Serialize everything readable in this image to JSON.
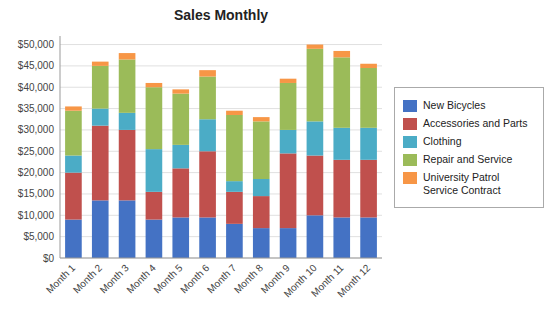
{
  "chart_data": {
    "type": "bar",
    "title": "Sales Monthly",
    "categories": [
      "Month 1",
      "Month 2",
      "Month 3",
      "Month 4",
      "Month 5",
      "Month 6",
      "Month 7",
      "Month 8",
      "Month 9",
      "Month 10",
      "Month 11",
      "Month 12"
    ],
    "series": [
      {
        "name": "New Bicycles",
        "color": "#4472C4",
        "values": [
          9000,
          13500,
          13500,
          9000,
          9500,
          9500,
          8000,
          7000,
          7000,
          10000,
          9500,
          9500
        ]
      },
      {
        "name": "Accessories and Parts",
        "color": "#C0504D",
        "values": [
          11000,
          17500,
          16500,
          6500,
          11500,
          15500,
          7500,
          7500,
          17500,
          14000,
          13500,
          13500
        ]
      },
      {
        "name": "Clothing",
        "color": "#4BACC6",
        "values": [
          4000,
          4000,
          4000,
          10000,
          5500,
          7500,
          2500,
          4000,
          5500,
          8000,
          7500,
          7500
        ]
      },
      {
        "name": "Repair and Service",
        "color": "#9BBB59",
        "values": [
          10500,
          10000,
          12500,
          14500,
          12000,
          10000,
          15500,
          13500,
          11000,
          17000,
          16500,
          14000
        ]
      },
      {
        "name": "University Patrol Service Contract",
        "color": "#F79646",
        "values": [
          1000,
          1000,
          1500,
          1000,
          1000,
          1500,
          1000,
          1000,
          1000,
          1000,
          1500,
          1000
        ]
      }
    ],
    "ylim": [
      0,
      52000
    ],
    "yticks": [
      {
        "value": 0,
        "label": "$0"
      },
      {
        "value": 5000,
        "label": "$5,000"
      },
      {
        "value": 10000,
        "label": "$10,000"
      },
      {
        "value": 15000,
        "label": "$15,000"
      },
      {
        "value": 20000,
        "label": "$20,000"
      },
      {
        "value": 25000,
        "label": "$25,000"
      },
      {
        "value": 30000,
        "label": "$30,000"
      },
      {
        "value": 35000,
        "label": "$35,000"
      },
      {
        "value": 40000,
        "label": "$40,000"
      },
      {
        "value": 45000,
        "label": "$45,000"
      },
      {
        "value": 50000,
        "label": "$50,000"
      }
    ],
    "stacked": true,
    "grid": true,
    "legend": "right"
  }
}
